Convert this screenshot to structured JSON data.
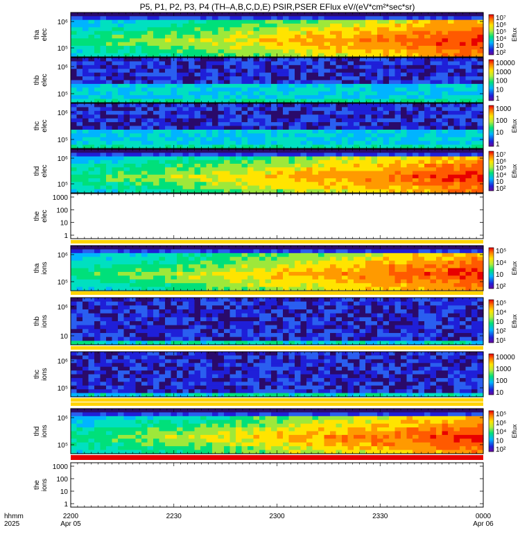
{
  "title": "P5, P1, P2, P3, P4 (TH–A,B,C,D,E) PSIR,PSER EFlux eV/(eV*cm²*sec*sr)",
  "chart_data": {
    "type": "heatmap",
    "title": "P5, P1, P2, P3, P4 (TH–A,B,C,D,E) PSIR,PSER EFlux eV/(eV*cm²*sec*sr)",
    "x_axis": {
      "row1_label": "hhmm",
      "row2_label": "2025",
      "ticks": [
        {
          "time": "2200",
          "date": "Apr 05"
        },
        {
          "time": "2230",
          "date": ""
        },
        {
          "time": "2300",
          "date": ""
        },
        {
          "time": "2330",
          "date": ""
        },
        {
          "time": "0000",
          "date": "Apr 06"
        }
      ]
    },
    "colorbar_label": "Eflux",
    "panels": [
      {
        "probe": "tha",
        "species": "elec",
        "ylabel": [
          "tha",
          "elec"
        ],
        "yticks": [
          "10⁶",
          "10⁵"
        ],
        "colorbar_ticks": [
          "10⁷",
          "10⁶",
          "10⁵",
          "10⁴",
          "10⁳",
          "10²"
        ],
        "colorbar_label": "Eflux"
      },
      {
        "probe": "thb",
        "species": "elec",
        "ylabel": [
          "thb",
          "elec"
        ],
        "yticks": [
          "10⁶",
          "10⁵"
        ],
        "colorbar_ticks": [
          "10000",
          "1000",
          "100",
          "10",
          "1"
        ],
        "colorbar_label": ""
      },
      {
        "probe": "thc",
        "species": "elec",
        "ylabel": [
          "thc",
          "elec"
        ],
        "yticks": [
          "10⁶",
          "10⁵"
        ],
        "colorbar_ticks": [
          "1000",
          "100",
          "10",
          "1"
        ],
        "colorbar_label": "Eflux"
      },
      {
        "probe": "thd",
        "species": "elec",
        "ylabel": [
          "thd",
          "elec"
        ],
        "yticks": [
          "10⁶",
          "10⁵"
        ],
        "colorbar_ticks": [
          "10⁷",
          "10⁶",
          "10⁵",
          "10⁴",
          "10⁳",
          "10²"
        ],
        "colorbar_label": "Eflux"
      },
      {
        "probe": "the",
        "species": "elec",
        "ylabel": [
          "the",
          "elec"
        ],
        "yticks": [
          "1000",
          "100",
          "10",
          "1"
        ],
        "colorbar_ticks": [],
        "colorbar_label": "",
        "empty": true
      },
      {
        "probe": "tha",
        "species": "ions",
        "ylabel": [
          "tha",
          "ions"
        ],
        "yticks": [
          "10⁶",
          "10⁵"
        ],
        "colorbar_ticks": [
          "10⁵",
          "10⁴",
          "10⁳",
          "10²"
        ],
        "colorbar_label": "Eflux"
      },
      {
        "probe": "thb",
        "species": "ions",
        "ylabel": [
          "thb",
          "ions"
        ],
        "yticks": [
          "10⁶",
          "10⁳"
        ],
        "colorbar_ticks": [
          "10⁵",
          "10⁴",
          "10⁳",
          "10²",
          "10¹"
        ],
        "colorbar_label": "Eflux"
      },
      {
        "probe": "thc",
        "species": "ions",
        "ylabel": [
          "thc",
          "ions"
        ],
        "yticks": [
          "10⁶",
          "10⁵"
        ],
        "colorbar_ticks": [
          "10000",
          "1000",
          "100",
          "10"
        ],
        "colorbar_label": ""
      },
      {
        "probe": "thd",
        "species": "ions",
        "ylabel": [
          "thd",
          "ions"
        ],
        "yticks": [
          "10⁶",
          "10⁵"
        ],
        "colorbar_ticks": [
          "10⁵",
          "10⁶",
          "10⁴",
          "10⁳",
          "10²"
        ],
        "colorbar_label": "Eflux"
      },
      {
        "probe": "the",
        "species": "ions",
        "ylabel": [
          "the",
          "ions"
        ],
        "yticks": [
          "1000",
          "100",
          "10",
          "1"
        ],
        "colorbar_ticks": [],
        "colorbar_label": "",
        "empty": true
      }
    ]
  }
}
